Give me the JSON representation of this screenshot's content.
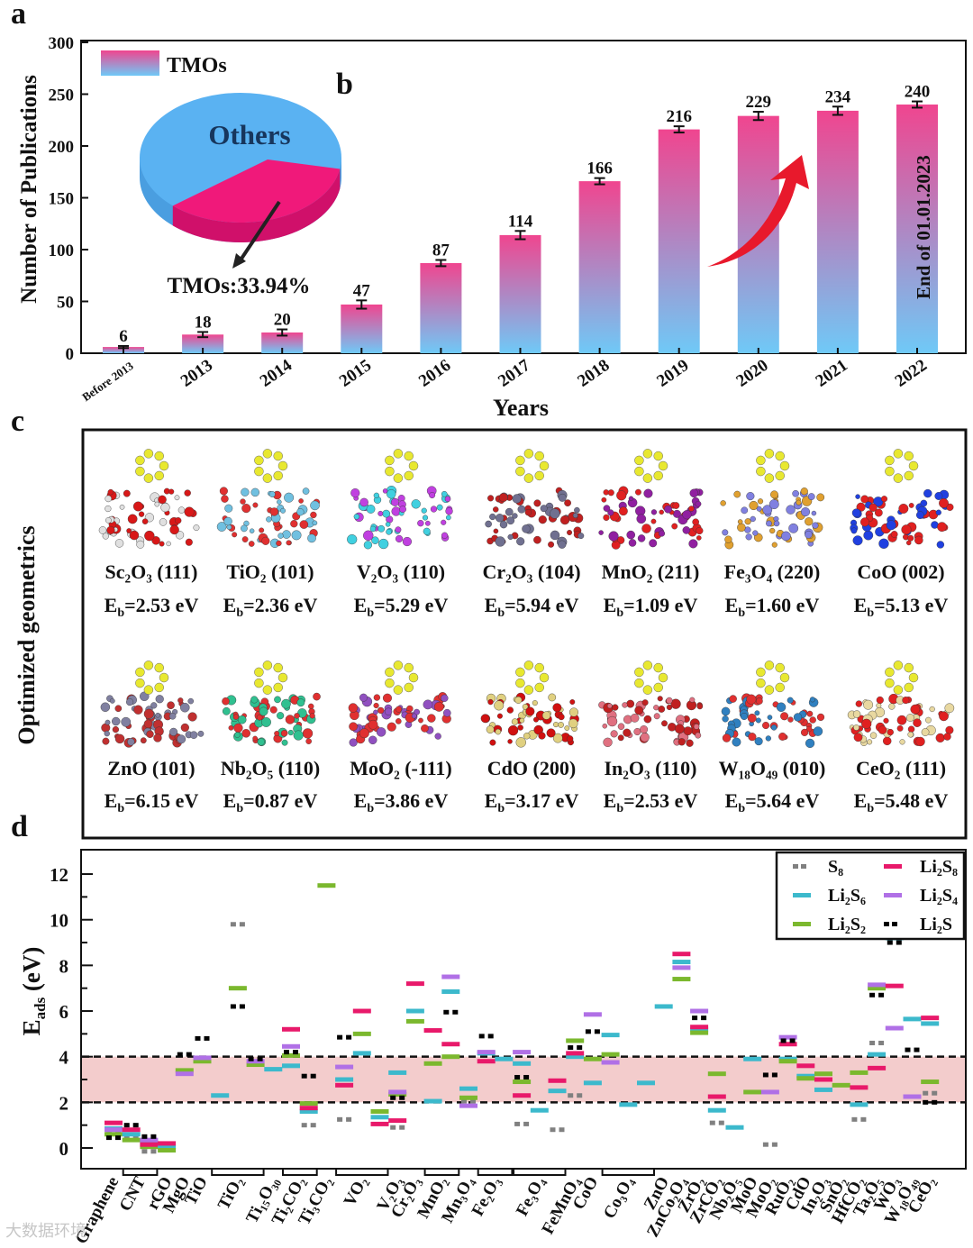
{
  "panel_labels": {
    "a": "a",
    "b": "b",
    "c": "c",
    "d": "d"
  },
  "chart_data": [
    {
      "id": "a",
      "type": "bar",
      "title": "",
      "xlabel": "Years",
      "ylabel": "Number of Publications",
      "ylim": [
        0,
        300
      ],
      "yticks": [
        "0",
        "50",
        "100",
        "150",
        "200",
        "250",
        "300"
      ],
      "categories": [
        "Before 2013",
        "2013",
        "2014",
        "2015",
        "2016",
        "2017",
        "2018",
        "2019",
        "2020",
        "2021",
        "2022"
      ],
      "values": [
        6,
        18,
        20,
        47,
        87,
        114,
        166,
        216,
        229,
        234,
        240
      ],
      "value_labels": [
        "6",
        "18",
        "20",
        "47",
        "87",
        "114",
        "166",
        "216",
        "229",
        "234",
        "240"
      ],
      "errors": [
        1,
        2.5,
        3,
        4,
        3,
        4,
        3,
        3,
        4,
        4,
        3
      ],
      "legend": {
        "label": "TMOs",
        "position": "top-left"
      },
      "annotation": "End of 01.01.2023",
      "colors": {
        "bar_top": "#f0458f",
        "bar_bottom": "#6fc9f7",
        "arrow": "#e8192c"
      }
    },
    {
      "id": "b",
      "type": "pie",
      "slices": [
        {
          "label": "TMOs",
          "value": 33.94,
          "color": "#f0197a"
        },
        {
          "label": "Others",
          "value": 66.06,
          "color": "#5ab2f2"
        }
      ],
      "slice_labels": {
        "others": "Others",
        "tmos": "TMOs:33.94%"
      }
    },
    {
      "id": "d",
      "type": "scatter",
      "ylabel_main": "E",
      "ylabel_sub": "ads",
      "ylabel_unit": " (eV)",
      "ylim": [
        -1,
        13
      ],
      "yticks": [
        "0",
        "2",
        "4",
        "6",
        "8",
        "10",
        "12"
      ],
      "band": [
        2,
        4
      ],
      "series": [
        {
          "name": "S8",
          "label": "S₈",
          "color": "#808080",
          "style": "dash"
        },
        {
          "name": "Li2S8",
          "label": "Li₂S₈",
          "color": "#e8196a",
          "style": "solid"
        },
        {
          "name": "Li2S6",
          "label": "Li₂S₆",
          "color": "#3cb9cc",
          "style": "solid"
        },
        {
          "name": "Li2S4",
          "label": "Li₂S₄",
          "color": "#b070e6",
          "style": "solid"
        },
        {
          "name": "Li2S2",
          "label": "Li₂S₂",
          "color": "#7bb82e",
          "style": "solid"
        },
        {
          "name": "Li2S",
          "label": "Li₂S",
          "color": "#000000",
          "style": "dash"
        }
      ],
      "columns": [
        {
          "Li2S8": 1.1,
          "Li2S6": 0.85,
          "Li2S4": 0.8,
          "S8": 0.75,
          "Li2S2": 0.6,
          "Li2S": 0.45
        },
        {
          "Li2S": 1.0,
          "Li2S8": 0.8,
          "Li2S6": 0.6,
          "S8": 0.5,
          "Li2S2": 0.35
        },
        {
          "Li2S": 0.5,
          "Li2S4": 0.35,
          "Li2S6": 0.25,
          "Li2S8": 0.15,
          "Li2S2": 0.05,
          "S8": -0.15
        },
        {
          "Li2S8": 0.2,
          "Li2S6": 0.05,
          "Li2S2": -0.1
        },
        {
          "Li2S": 4.1,
          "Li2S2": 3.4,
          "Li2S4": 3.25
        },
        {
          "Li2S": 4.8,
          "Li2S4": 3.95,
          "Li2S2": 3.8
        },
        {
          "Li2S6": 2.3
        },
        {
          "S8": 9.8,
          "Li2S2": 7.0,
          "Li2S": 6.2
        },
        {
          "Li2S": 3.9,
          "Li2S4": 3.8,
          "Li2S2": 3.65
        },
        {
          "Li2S6": 3.45
        },
        {
          "Li2S8": 5.2,
          "Li2S4": 4.45,
          "Li2S": 4.2,
          "Li2S2": 4.05,
          "Li2S6": 3.6
        },
        {
          "Li2S": 3.15,
          "Li2S2": 1.95,
          "Li2S8": 1.75,
          "Li2S6": 1.6,
          "S8": 1.0
        },
        {
          "Li2S2": 11.5
        },
        {
          "Li2S": 4.85,
          "Li2S4": 3.55,
          "Li2S6": 3.0,
          "Li2S8": 2.75,
          "S8": 1.25
        },
        {
          "Li2S8": 6.0,
          "Li2S2": 5.0,
          "Li2S6": 4.15
        },
        {
          "Li2S2": 1.6,
          "Li2S6": 1.35,
          "Li2S8": 1.05
        },
        {
          "Li2S6": 3.3,
          "Li2S4": 2.45,
          "Li2S2": 2.35,
          "Li2S": 2.2,
          "Li2S8": 1.2,
          "S8": 0.9
        },
        {
          "Li2S8": 7.2,
          "Li2S6": 6.0,
          "Li2S2": 5.55
        },
        {
          "Li2S8": 5.15,
          "Li2S2": 3.7,
          "Li2S6": 2.05
        },
        {
          "Li2S4": 7.5,
          "Li2S6": 6.85,
          "Li2S": 5.95,
          "Li2S8": 4.55,
          "Li2S2": 4.0
        },
        {
          "Li2S6": 2.6,
          "Li2S2": 2.2,
          "S8": 2.05,
          "Li2S4": 1.85
        },
        {
          "Li2S": 4.9,
          "Li2S4": 4.2,
          "Li2S6": 4.15,
          "Li2S8": 3.8
        },
        {
          "Li2S6": 3.9
        },
        {
          "Li2S4": 4.2,
          "Li2S6": 3.7,
          "Li2S": 3.1,
          "Li2S2": 2.9,
          "Li2S8": 2.3,
          "S8": 1.05
        },
        {
          "Li2S6": 1.65
        },
        {
          "Li2S8": 2.95,
          "Li2S6": 2.5,
          "S8": 0.8
        },
        {
          "Li2S2": 4.7,
          "Li2S": 4.4,
          "Li2S8": 4.15,
          "Li2S6": 4.0,
          "S8": 2.3
        },
        {
          "Li2S4": 5.85,
          "Li2S": 5.1,
          "Li2S2": 3.9,
          "Li2S6": 2.85
        },
        {
          "Li2S6": 4.95,
          "Li2S2": 4.1,
          "Li2S4": 3.75
        },
        {
          "Li2S6": 1.9
        },
        {
          "Li2S6": 2.85
        },
        {
          "Li2S6": 6.2
        },
        {
          "Li2S8": 8.5,
          "Li2S6": 8.15,
          "Li2S4": 7.9,
          "Li2S2": 7.4
        },
        {
          "Li2S4": 6.0,
          "Li2S": 5.7,
          "Li2S8": 5.3,
          "Li2S6": 5.2,
          "Li2S2": 5.05
        },
        {
          "Li2S2": 3.25,
          "Li2S8": 2.25,
          "Li2S6": 1.65,
          "S8": 1.1
        },
        {
          "Li2S6": 0.9
        },
        {
          "Li2S6": 3.9,
          "Li2S2": 2.45
        },
        {
          "Li2S": 3.2,
          "Li2S4": 2.45,
          "S8": 0.15
        },
        {
          "Li2S4": 4.85,
          "Li2S": 4.7,
          "Li2S8": 4.55,
          "Li2S6": 3.9,
          "Li2S2": 3.8
        },
        {
          "Li2S8": 3.6,
          "Li2S6": 3.15,
          "Li2S2": 3.05
        },
        {
          "Li2S2": 3.25,
          "Li2S8": 3.0,
          "Li2S6": 2.55
        },
        {
          "Li2S2": 2.75
        },
        {
          "Li2S2": 3.3,
          "Li2S8": 2.65,
          "Li2S6": 1.9,
          "S8": 1.25
        },
        {
          "Li2S4": 7.15,
          "Li2S2": 7.0,
          "Li2S": 6.7,
          "S8": 4.6,
          "Li2S6": 4.1,
          "Li2S8": 3.5
        },
        {
          "Li2S2": 9.65,
          "Li2S6": 9.2,
          "Li2S": 9.0,
          "Li2S8": 7.1,
          "Li2S4": 5.25
        },
        {
          "Li2S6": 5.65,
          "Li2S": 4.3,
          "Li2S4": 2.25
        },
        {
          "Li2S8": 5.7,
          "Li2S6": 5.45,
          "Li2S2": 2.9,
          "S8": 2.4,
          "Li2S": 2.0
        }
      ],
      "x_labels": [
        {
          "text": "Graphene",
          "at": 0
        },
        {
          "text": "CNT",
          "at": 1.5,
          "span": [
            1,
            2
          ]
        },
        {
          "text": "rGO",
          "at": 3
        },
        {
          "text": "MgO",
          "at": 4
        },
        {
          "text": "TiO",
          "at": 5
        },
        {
          "text": "TiO₂",
          "at": 7,
          "span": [
            6,
            8
          ]
        },
        {
          "text": "Ti₁₅O₃₀",
          "at": 9
        },
        {
          "text": "Ti₂CO₂",
          "at": 10.5,
          "span": [
            10,
            11
          ]
        },
        {
          "text": "Ti₃CO₂",
          "at": 12
        },
        {
          "text": "VO₂",
          "at": 14,
          "span": [
            13,
            15
          ]
        },
        {
          "text": "V₂O₃",
          "at": 16
        },
        {
          "text": "Cr₂O₃",
          "at": 17
        },
        {
          "text": "MnO₂",
          "at": 18.5,
          "span": [
            18,
            19
          ]
        },
        {
          "text": "Mn₃O₄",
          "at": 20
        },
        {
          "text": "Fe₂O₃",
          "at": 21.5,
          "span": [
            21,
            22
          ]
        },
        {
          "text": "Fe₃O₄",
          "at": 24,
          "span": [
            23,
            25
          ]
        },
        {
          "text": "FeMnO₄",
          "at": 26
        },
        {
          "text": "CoO",
          "at": 27
        },
        {
          "text": "Co₃O₄",
          "at": 29,
          "span": [
            28,
            30
          ]
        },
        {
          "text": "ZnO",
          "at": 31
        },
        {
          "text": "ZnCo₂O₄",
          "at": 32
        },
        {
          "text": "ZrO₂",
          "at": 33
        },
        {
          "text": "ZrCO₂",
          "at": 34
        },
        {
          "text": "Nb₂O₅",
          "at": 35
        },
        {
          "text": "MoO",
          "at": 36
        },
        {
          "text": "MoO₂",
          "at": 37
        },
        {
          "text": "RuO₂",
          "at": 38
        },
        {
          "text": "CdO",
          "at": 39
        },
        {
          "text": "In₂O₃",
          "at": 40
        },
        {
          "text": "SnO₂",
          "at": 41
        },
        {
          "text": "HfCO₂",
          "at": 42
        },
        {
          "text": "Ta₂O₅",
          "at": 43
        },
        {
          "text": "WO₃",
          "at": 44
        },
        {
          "text": "W₁₈O₄₉",
          "at": 45
        },
        {
          "text": "CeO₂",
          "at": 46
        }
      ]
    }
  ],
  "panel_c": {
    "side_title": "Optimized geometrics",
    "eb_symbol": "E",
    "eb_sub": "b",
    "items": [
      {
        "material": "Sc₂O₃ (111)",
        "energy": "=2.53 eV",
        "colors": [
          "#d81818",
          "#e0e0e0",
          "#e8e830"
        ]
      },
      {
        "material": "TiO₂ (101)",
        "energy": "=2.36 eV",
        "colors": [
          "#e03030",
          "#70c0e0",
          "#e8e830"
        ]
      },
      {
        "material": "V₂O₃ (110)",
        "energy": "=5.29 eV",
        "colors": [
          "#40d0e0",
          "#c040e0",
          "#e8e830"
        ]
      },
      {
        "material": "Cr₂O₃ (104)",
        "energy": "=5.94 eV",
        "colors": [
          "#c02020",
          "#707090",
          "#e8e830"
        ]
      },
      {
        "material": "MnO₂ (211)",
        "energy": "=1.09 eV",
        "colors": [
          "#e02020",
          "#9020a0",
          "#e8e830"
        ]
      },
      {
        "material": "Fe₃O₄ (220)",
        "energy": "=1.60 eV",
        "colors": [
          "#e0a030",
          "#8080e0",
          "#e8e830"
        ]
      },
      {
        "material": "CoO (002)",
        "energy": "=5.13 eV",
        "colors": [
          "#2040e0",
          "#e02020",
          "#e8e830"
        ]
      },
      {
        "material": "ZnO (101)",
        "energy": "=6.15 eV",
        "colors": [
          "#c03030",
          "#8080a0",
          "#e8e830"
        ]
      },
      {
        "material": "Nb₂O₅ (110)",
        "energy": "=0.87 eV",
        "colors": [
          "#30c090",
          "#e03030",
          "#e8e830"
        ]
      },
      {
        "material": "MoO₂ (-111)",
        "energy": "=3.86 eV",
        "colors": [
          "#9050c0",
          "#e03030",
          "#e8e830"
        ]
      },
      {
        "material": "CdO (200)",
        "energy": "=3.17 eV",
        "colors": [
          "#e0d080",
          "#d01010",
          "#e8e830"
        ]
      },
      {
        "material": "In₂O₃ (110)",
        "energy": "=2.53 eV",
        "colors": [
          "#e07080",
          "#c02020",
          "#e8e830"
        ]
      },
      {
        "material": "W₁₈O₄₉ (010)",
        "energy": "=5.64 eV",
        "colors": [
          "#3080c0",
          "#e03030",
          "#e8e830"
        ]
      },
      {
        "material": "CeO₂ (111)",
        "energy": "=5.48 eV",
        "colors": [
          "#e8d8a0",
          "#e02020",
          "#e8e830"
        ]
      }
    ]
  },
  "watermark": "大数据环境"
}
